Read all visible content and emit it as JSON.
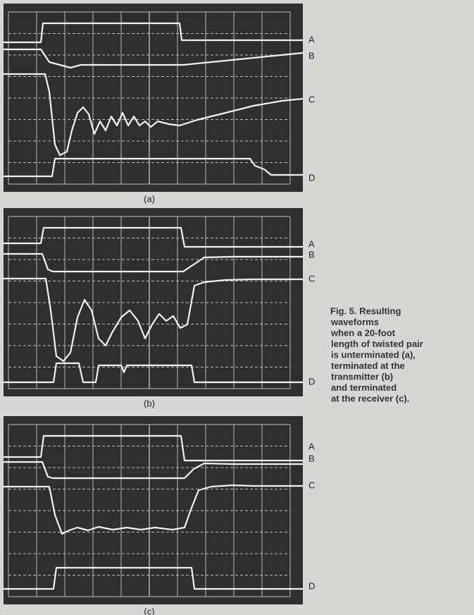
{
  "panels": [
    {
      "caption": "(a)",
      "labels": [
        "A",
        "B",
        "C",
        "D"
      ]
    },
    {
      "caption": "(b)",
      "labels": [
        "A",
        "B",
        "C",
        "D"
      ]
    },
    {
      "caption": "(c)",
      "labels": [
        "A",
        "B",
        "C",
        "D"
      ]
    }
  ],
  "figure_caption": [
    "Fig. 5. Resulting",
    "waveforms",
    "when a 20-foot",
    "length of twisted pair",
    "is unterminated (a),",
    "terminated at the",
    "transmitter (b)",
    "and terminated",
    "at the receiver (c)."
  ]
}
